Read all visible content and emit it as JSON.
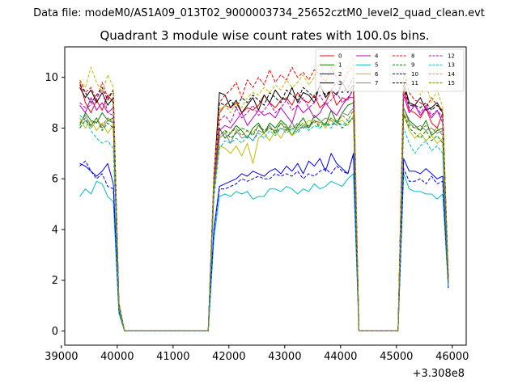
{
  "suptitle": "Data file: modeM0/AS1A09_013T02_9000003734_25652cztM0_level2_quad_clean.evt",
  "chart_data": {
    "type": "line",
    "title": "Quadrant 3 module wise count rates with 100.0s bins.",
    "xlabel": "",
    "ylabel": "",
    "x_offset_label": "+3.308e8",
    "xlim": [
      39060,
      46250
    ],
    "ylim": [
      -0.56,
      11.2
    ],
    "xticks": [
      39000,
      40000,
      41000,
      42000,
      43000,
      44000,
      45000,
      46000
    ],
    "yticks": [
      0,
      2,
      4,
      6,
      8,
      10
    ],
    "x": [
      39330,
      39430,
      39530,
      39630,
      39730,
      39830,
      39930,
      40030,
      40130,
      40230,
      40330,
      40430,
      40530,
      40630,
      40730,
      40830,
      40930,
      41030,
      41130,
      41230,
      41330,
      41430,
      41530,
      41630,
      41730,
      41830,
      41930,
      42030,
      42130,
      42230,
      42330,
      42430,
      42530,
      42630,
      42730,
      42830,
      42930,
      43030,
      43130,
      43230,
      43330,
      43430,
      43530,
      43630,
      43730,
      43830,
      43930,
      44030,
      44130,
      44230,
      44330,
      44430,
      44530,
      44630,
      44730,
      44830,
      44930,
      45030,
      45130,
      45230,
      45330,
      45430,
      45530,
      45630,
      45730,
      45830,
      45930
    ],
    "legend": {
      "location": "upper right",
      "ncols": 4
    },
    "series": [
      {
        "name": "0",
        "color": "#ff0000",
        "style": "solid",
        "values": [
          9.8,
          9.0,
          8.6,
          9.1,
          8.7,
          9.3,
          9.0,
          1.0,
          0,
          0,
          0,
          0,
          0,
          0,
          0,
          0,
          0,
          0,
          0,
          0,
          0,
          0,
          0,
          0,
          5.8,
          8.6,
          8.9,
          8.8,
          9.0,
          8.6,
          8.8,
          8.7,
          8.9,
          9.3,
          9.0,
          8.8,
          9.1,
          9.2,
          8.9,
          9.4,
          9.1,
          9.0,
          9.3,
          8.8,
          9.0,
          9.5,
          8.9,
          9.2,
          9.1,
          9.6,
          0,
          0,
          0,
          0,
          0,
          0,
          0,
          0,
          9.6,
          8.7,
          8.6,
          8.4,
          8.8,
          8.2,
          8.0,
          8.6,
          2.0
        ]
      },
      {
        "name": "1",
        "color": "#008000",
        "style": "solid",
        "values": [
          8.1,
          8.6,
          8.3,
          8.2,
          8.6,
          8.3,
          8.4,
          1.0,
          0,
          0,
          0,
          0,
          0,
          0,
          0,
          0,
          0,
          0,
          0,
          0,
          0,
          0,
          0,
          0,
          5.6,
          8.0,
          7.6,
          7.8,
          8.1,
          7.9,
          7.6,
          8.0,
          8.2,
          7.8,
          8.2,
          8.0,
          8.3,
          8.1,
          7.7,
          8.1,
          8.4,
          8.0,
          8.5,
          8.3,
          8.1,
          8.7,
          8.2,
          8.6,
          8.9,
          9.0,
          0,
          0,
          0,
          0,
          0,
          0,
          0,
          0,
          8.8,
          8.3,
          8.1,
          7.9,
          8.3,
          7.7,
          7.9,
          8.0,
          1.9
        ]
      },
      {
        "name": "2",
        "color": "#0000ff",
        "style": "solid",
        "values": [
          6.6,
          6.5,
          6.3,
          6.1,
          6.3,
          6.6,
          5.8,
          0.8,
          0,
          0,
          0,
          0,
          0,
          0,
          0,
          0,
          0,
          0,
          0,
          0,
          0,
          0,
          0,
          0,
          4.0,
          5.7,
          5.8,
          5.9,
          6.0,
          6.2,
          6.1,
          6.3,
          6.2,
          6.1,
          6.3,
          6.4,
          6.2,
          6.5,
          6.3,
          6.6,
          6.2,
          6.7,
          6.5,
          6.8,
          6.3,
          7.0,
          6.6,
          6.4,
          6.2,
          7.0,
          0,
          0,
          0,
          0,
          0,
          0,
          0,
          0,
          6.8,
          6.3,
          6.3,
          6.2,
          6.4,
          6.2,
          6.0,
          6.1,
          1.7
        ]
      },
      {
        "name": "3",
        "color": "#000000",
        "style": "solid",
        "values": [
          9.6,
          9.2,
          9.5,
          9.0,
          9.4,
          8.9,
          9.2,
          1.1,
          0,
          0,
          0,
          0,
          0,
          0,
          0,
          0,
          0,
          0,
          0,
          0,
          0,
          0,
          0,
          0,
          6.0,
          9.4,
          9.3,
          8.8,
          9.1,
          8.6,
          8.9,
          9.2,
          8.7,
          9.3,
          9.0,
          9.5,
          9.2,
          9.1,
          9.6,
          9.0,
          9.4,
          9.3,
          9.0,
          9.7,
          9.2,
          9.5,
          9.3,
          9.8,
          9.4,
          9.7,
          0,
          0,
          0,
          0,
          0,
          0,
          0,
          0,
          9.8,
          9.0,
          8.9,
          9.2,
          8.7,
          8.8,
          9.0,
          8.6,
          2.1
        ]
      },
      {
        "name": "4",
        "color": "#bf00bf",
        "style": "solid",
        "values": [
          8.9,
          8.6,
          9.2,
          8.7,
          9.0,
          8.6,
          8.8,
          1.0,
          0,
          0,
          0,
          0,
          0,
          0,
          0,
          0,
          0,
          0,
          0,
          0,
          0,
          0,
          0,
          0,
          5.8,
          7.9,
          8.1,
          8.0,
          8.3,
          8.6,
          8.1,
          8.4,
          8.7,
          8.5,
          8.6,
          8.4,
          8.8,
          8.5,
          8.2,
          8.9,
          8.6,
          8.8,
          8.4,
          8.6,
          9.0,
          8.7,
          8.5,
          8.9,
          9.2,
          9.2,
          0,
          0,
          0,
          0,
          0,
          0,
          0,
          0,
          9.3,
          8.6,
          8.9,
          8.5,
          8.8,
          8.4,
          8.7,
          8.2,
          2.0
        ]
      },
      {
        "name": "5",
        "color": "#00bfbf",
        "style": "solid",
        "values": [
          5.3,
          5.6,
          5.4,
          5.9,
          5.8,
          5.3,
          5.1,
          0.7,
          0,
          0,
          0,
          0,
          0,
          0,
          0,
          0,
          0,
          0,
          0,
          0,
          0,
          0,
          0,
          0,
          3.6,
          5.3,
          5.4,
          5.3,
          5.5,
          5.4,
          5.5,
          5.2,
          5.3,
          5.3,
          5.6,
          5.6,
          5.5,
          5.7,
          5.6,
          5.4,
          5.6,
          5.5,
          5.8,
          5.6,
          5.7,
          5.9,
          5.8,
          5.7,
          6.0,
          6.2,
          0,
          0,
          0,
          0,
          0,
          0,
          0,
          0,
          6.2,
          5.6,
          5.5,
          5.5,
          5.4,
          5.4,
          5.2,
          5.4,
          1.7
        ]
      },
      {
        "name": "6",
        "color": "#bfbf00",
        "style": "solid",
        "values": [
          8.4,
          8.0,
          8.3,
          7.9,
          8.2,
          7.8,
          8.1,
          0.9,
          0,
          0,
          0,
          0,
          0,
          0,
          0,
          0,
          0,
          0,
          0,
          0,
          0,
          0,
          0,
          0,
          5.4,
          7.3,
          7.2,
          7.0,
          7.3,
          6.9,
          7.4,
          6.6,
          7.6,
          7.8,
          7.5,
          7.9,
          7.6,
          8.0,
          7.7,
          7.9,
          8.1,
          8.3,
          8.2,
          8.3,
          8.0,
          8.4,
          8.2,
          8.3,
          8.1,
          8.5,
          0,
          0,
          0,
          0,
          0,
          0,
          0,
          0,
          8.6,
          7.9,
          7.6,
          7.8,
          7.5,
          7.7,
          7.4,
          7.6,
          1.9
        ]
      },
      {
        "name": "7",
        "color": "#808080",
        "style": "solid",
        "values": [
          8.2,
          8.5,
          8.1,
          8.4,
          8.0,
          8.3,
          8.2,
          0.9,
          0,
          0,
          0,
          0,
          0,
          0,
          0,
          0,
          0,
          0,
          0,
          0,
          0,
          0,
          0,
          0,
          5.5,
          7.6,
          7.8,
          7.4,
          7.9,
          7.6,
          7.7,
          7.5,
          7.9,
          7.8,
          8.1,
          7.8,
          8.0,
          7.9,
          8.2,
          7.9,
          8.1,
          8.0,
          8.3,
          8.2,
          8.4,
          8.3,
          8.1,
          8.6,
          8.5,
          8.8,
          0,
          0,
          0,
          0,
          0,
          0,
          0,
          0,
          8.8,
          8.2,
          8.0,
          8.1,
          7.9,
          8.0,
          7.8,
          7.9,
          1.9
        ]
      },
      {
        "name": "8",
        "color": "#ff0000",
        "style": "dashed",
        "values": [
          9.9,
          9.4,
          9.6,
          9.1,
          9.8,
          9.2,
          9.5,
          1.1,
          0,
          0,
          0,
          0,
          0,
          0,
          0,
          0,
          0,
          0,
          0,
          0,
          0,
          0,
          0,
          0,
          6.2,
          9.0,
          9.3,
          9.5,
          9.8,
          9.2,
          9.9,
          9.6,
          10.0,
          9.7,
          10.3,
          9.8,
          10.1,
          9.9,
          10.4,
          10.0,
          10.2,
          9.9,
          10.3,
          10.1,
          9.8,
          10.4,
          10.0,
          9.7,
          10.2,
          10.5,
          0,
          0,
          0,
          0,
          0,
          0,
          0,
          0,
          10.2,
          9.4,
          9.1,
          9.0,
          8.8,
          9.2,
          8.9,
          8.7,
          2.2
        ]
      },
      {
        "name": "9",
        "color": "#008000",
        "style": "dashed",
        "values": [
          8.0,
          8.3,
          8.1,
          8.4,
          7.9,
          8.2,
          8.0,
          0.9,
          0,
          0,
          0,
          0,
          0,
          0,
          0,
          0,
          0,
          0,
          0,
          0,
          0,
          0,
          0,
          0,
          5.5,
          7.7,
          7.9,
          7.6,
          7.8,
          8.0,
          7.9,
          7.7,
          8.1,
          7.9,
          8.0,
          7.8,
          8.2,
          8.0,
          7.9,
          8.2,
          8.0,
          8.1,
          8.3,
          8.0,
          8.2,
          8.1,
          8.3,
          8.0,
          8.2,
          8.4,
          0,
          0,
          0,
          0,
          0,
          0,
          0,
          0,
          8.5,
          8.0,
          7.8,
          7.6,
          7.9,
          7.5,
          7.7,
          7.4,
          1.9
        ]
      },
      {
        "name": "10",
        "color": "#0000ff",
        "style": "dashed",
        "values": [
          6.5,
          6.7,
          6.3,
          6.0,
          6.2,
          5.7,
          5.6,
          0.8,
          0,
          0,
          0,
          0,
          0,
          0,
          0,
          0,
          0,
          0,
          0,
          0,
          0,
          0,
          0,
          0,
          3.9,
          5.6,
          5.6,
          5.7,
          5.8,
          6.0,
          5.9,
          6.0,
          6.1,
          6.0,
          6.0,
          6.2,
          6.1,
          6.2,
          6.1,
          6.3,
          6.0,
          6.2,
          6.1,
          6.3,
          6.4,
          6.2,
          6.5,
          6.3,
          6.2,
          7.0,
          0,
          0,
          0,
          0,
          0,
          0,
          0,
          0,
          6.4,
          5.9,
          5.9,
          6.0,
          5.8,
          6.1,
          5.8,
          5.9,
          1.7
        ]
      },
      {
        "name": "11",
        "color": "#000000",
        "style": "dashed",
        "values": [
          9.7,
          9.4,
          9.0,
          9.3,
          9.6,
          9.1,
          9.5,
          1.1,
          0,
          0,
          0,
          0,
          0,
          0,
          0,
          0,
          0,
          0,
          0,
          0,
          0,
          0,
          0,
          0,
          6.0,
          9.0,
          8.9,
          9.1,
          8.8,
          9.2,
          9.0,
          9.3,
          9.1,
          8.9,
          9.4,
          9.2,
          9.0,
          9.5,
          9.3,
          9.1,
          9.6,
          9.4,
          9.2,
          9.7,
          9.3,
          9.5,
          9.8,
          9.4,
          9.6,
          10.0,
          0,
          0,
          0,
          0,
          0,
          0,
          0,
          0,
          9.7,
          8.9,
          8.9,
          8.8,
          9.0,
          8.7,
          8.9,
          8.6,
          2.1
        ]
      },
      {
        "name": "12",
        "color": "#bf00bf",
        "style": "dashed",
        "values": [
          9.0,
          8.8,
          8.9,
          9.2,
          9.5,
          8.6,
          8.5,
          1.0,
          0,
          0,
          0,
          0,
          0,
          0,
          0,
          0,
          0,
          0,
          0,
          0,
          0,
          0,
          0,
          0,
          5.9,
          8.3,
          8.5,
          8.2,
          8.8,
          8.4,
          8.6,
          8.9,
          8.5,
          8.7,
          9.0,
          8.6,
          8.8,
          9.1,
          8.7,
          8.9,
          9.2,
          8.8,
          9.0,
          9.3,
          8.9,
          9.1,
          9.4,
          9.0,
          9.2,
          9.5,
          0,
          0,
          0,
          0,
          0,
          0,
          0,
          0,
          9.4,
          8.8,
          8.9,
          8.6,
          8.9,
          8.5,
          8.7,
          8.4,
          2.0
        ]
      },
      {
        "name": "13",
        "color": "#00bfbf",
        "style": "dashed",
        "values": [
          8.5,
          8.3,
          7.9,
          7.6,
          7.4,
          7.5,
          7.2,
          0.9,
          0,
          0,
          0,
          0,
          0,
          0,
          0,
          0,
          0,
          0,
          0,
          0,
          0,
          0,
          0,
          0,
          5.2,
          7.2,
          7.5,
          7.4,
          7.6,
          7.4,
          7.7,
          7.5,
          7.8,
          7.6,
          7.9,
          7.7,
          8.0,
          7.8,
          8.0,
          7.8,
          8.1,
          7.9,
          8.1,
          8.0,
          8.2,
          8.0,
          8.3,
          8.1,
          8.3,
          8.4,
          0,
          0,
          0,
          0,
          0,
          0,
          0,
          0,
          8.0,
          7.4,
          7.0,
          7.3,
          7.5,
          7.1,
          7.3,
          7.0,
          1.8
        ]
      },
      {
        "name": "14",
        "color": "#bfbf00",
        "style": "dashed",
        "values": [
          9.9,
          9.6,
          10.4,
          9.8,
          9.4,
          10.1,
          9.6,
          1.1,
          0,
          0,
          0,
          0,
          0,
          0,
          0,
          0,
          0,
          0,
          0,
          0,
          0,
          0,
          0,
          0,
          6.1,
          8.7,
          8.9,
          8.6,
          9.0,
          8.8,
          9.2,
          9.4,
          9.3,
          9.6,
          9.4,
          9.7,
          9.5,
          9.9,
          9.6,
          9.8,
          10.1,
          9.7,
          10.0,
          10.7,
          9.9,
          10.2,
          10.6,
          10.3,
          10.4,
          10.8,
          0,
          0,
          0,
          0,
          0,
          0,
          0,
          0,
          10.1,
          9.7,
          9.9,
          9.3,
          9.7,
          9.0,
          9.5,
          8.8,
          2.2
        ]
      },
      {
        "name": "15",
        "color": "#808000",
        "style": "dashed",
        "values": [
          8.2,
          8.4,
          8.0,
          8.3,
          8.1,
          8.4,
          8.2,
          0.9,
          0,
          0,
          0,
          0,
          0,
          0,
          0,
          0,
          0,
          0,
          0,
          0,
          0,
          0,
          0,
          0,
          5.5,
          7.7,
          7.9,
          7.8,
          8.0,
          7.7,
          7.9,
          7.8,
          8.1,
          7.8,
          8.0,
          7.9,
          8.2,
          7.9,
          8.1,
          8.0,
          8.2,
          8.0,
          8.3,
          8.1,
          8.2,
          8.4,
          8.2,
          8.5,
          8.3,
          8.7,
          0,
          0,
          0,
          0,
          0,
          0,
          0,
          0,
          8.6,
          8.1,
          8.0,
          7.9,
          8.1,
          7.8,
          8.0,
          7.7,
          1.9
        ]
      }
    ]
  }
}
